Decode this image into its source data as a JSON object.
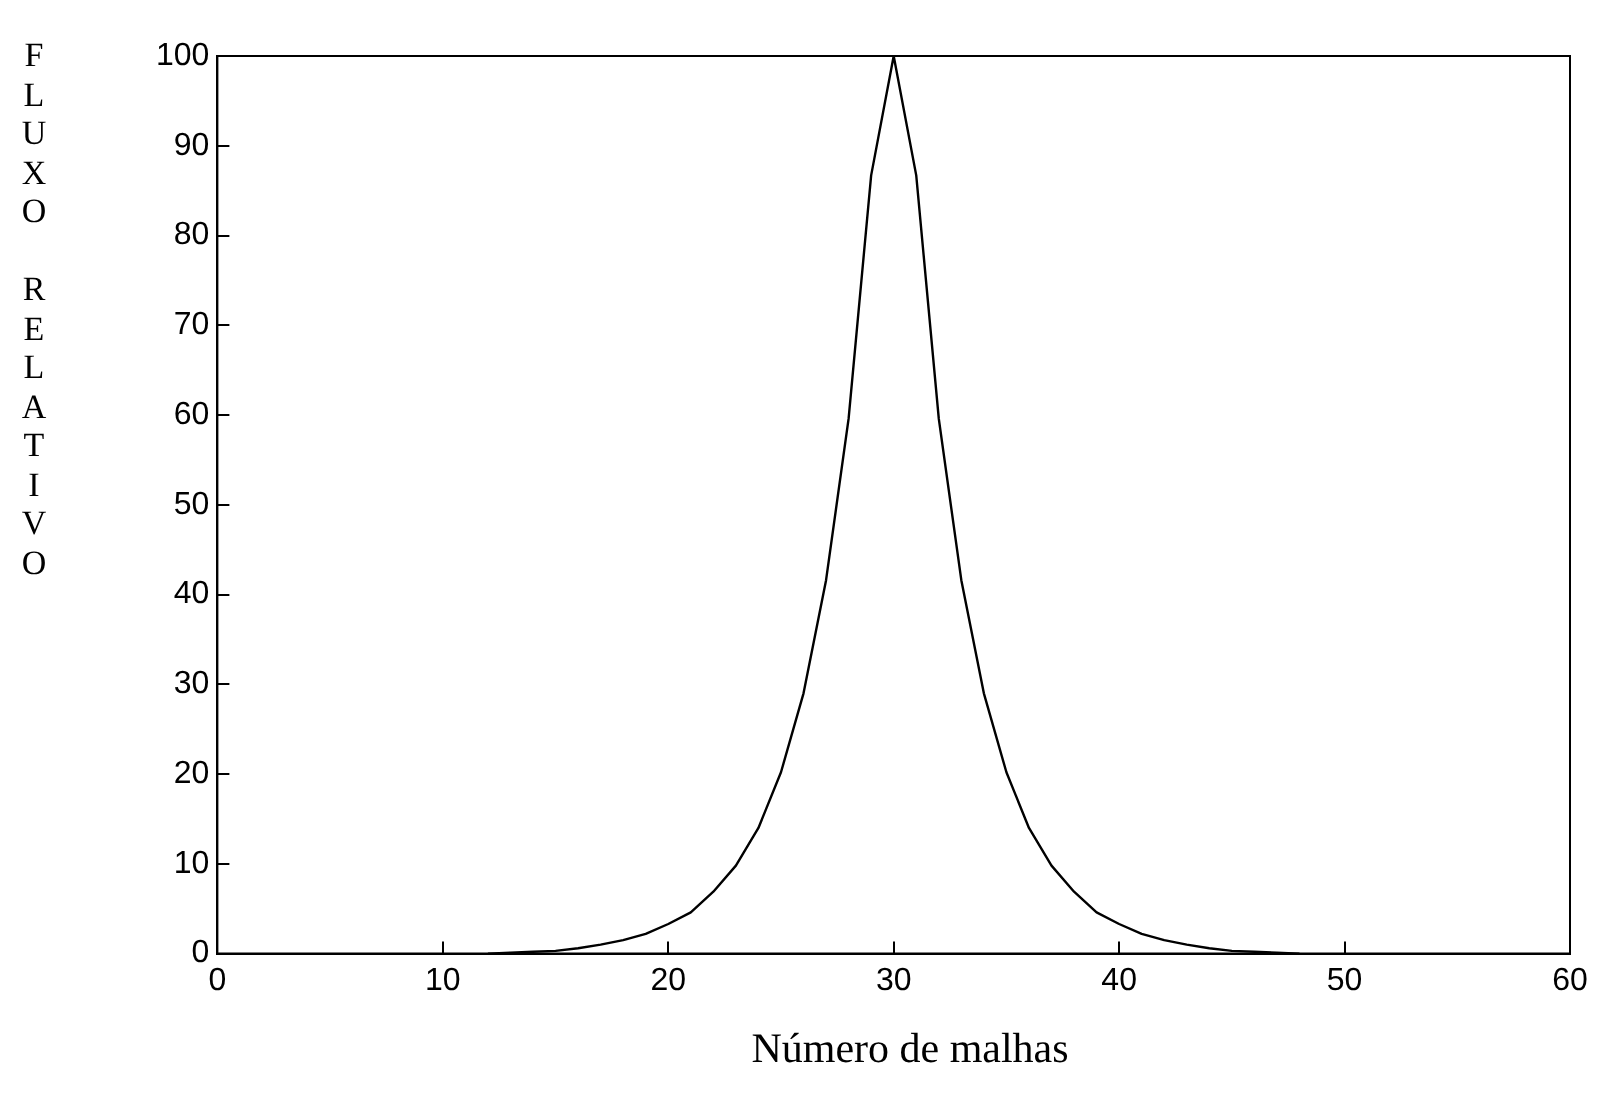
{
  "chart_data": {
    "type": "line",
    "xlabel": "Número de malhas",
    "ylabel": "FLUXO RELATIVO",
    "series": [
      {
        "color": "#000000",
        "x": [
          12,
          13,
          14,
          15,
          16,
          17,
          18,
          19,
          20,
          21,
          22,
          23,
          24,
          25,
          26,
          27,
          28,
          29,
          30,
          31,
          32,
          33,
          34,
          35,
          36,
          37,
          38,
          39,
          40,
          41,
          42,
          43,
          44,
          45,
          46,
          47,
          48
        ],
        "values": [
          0,
          0.1,
          0.2,
          0.3,
          0.6,
          1,
          1.5,
          2.2,
          3.3,
          4.6,
          6.9,
          9.8,
          14,
          20.2,
          29,
          41.6,
          59.6,
          86.7,
          100,
          86.7,
          59.6,
          41.6,
          29,
          20.2,
          14,
          9.8,
          6.9,
          4.6,
          3.3,
          2.2,
          1.5,
          1,
          0.6,
          0.3,
          0.2,
          0.1,
          0
        ]
      }
    ],
    "xlim": [
      0,
      60
    ],
    "xticks": [
      0,
      10,
      20,
      30,
      40,
      50,
      60
    ],
    "ylim": [
      0,
      100
    ],
    "yticks": [
      0,
      10,
      20,
      30,
      40,
      50,
      60,
      70,
      80,
      90,
      100
    ],
    "grid": false,
    "legend": false,
    "marker": "none",
    "line_style": "solid"
  }
}
